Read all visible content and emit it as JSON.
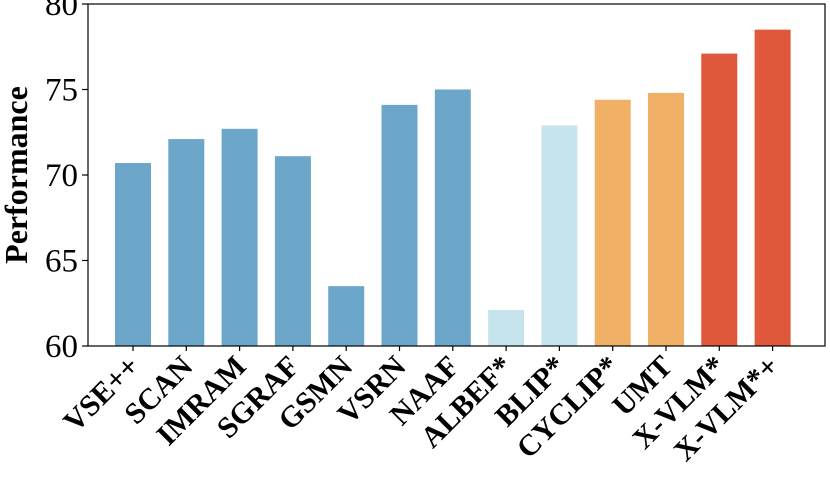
{
  "chart_data": {
    "type": "bar",
    "title": "",
    "xlabel": "",
    "ylabel": "Performance",
    "ylim": [
      60,
      80
    ],
    "yticks": [
      60,
      65,
      70,
      75,
      80
    ],
    "grid": false,
    "categories": [
      "VSE++",
      "SCAN",
      "IMRAM",
      "SGRAF",
      "GSMN",
      "VSRN",
      "NAAF",
      "ALBEF*",
      "BLIP*",
      "CYCLIP*",
      "UMT",
      "X-VLM*",
      "X-VLM*+"
    ],
    "values": [
      70.7,
      72.1,
      72.7,
      71.1,
      63.5,
      74.1,
      75.0,
      62.1,
      72.9,
      74.4,
      74.8,
      77.1,
      78.5
    ],
    "colors": [
      "#6ca6c8",
      "#6ca6c8",
      "#6ca6c8",
      "#6ca6c8",
      "#6ca6c8",
      "#6ca6c8",
      "#6ca6c8",
      "#c5e4ec",
      "#c5e4ec",
      "#f0b066",
      "#f0b066",
      "#e0583b",
      "#e0583b"
    ]
  }
}
